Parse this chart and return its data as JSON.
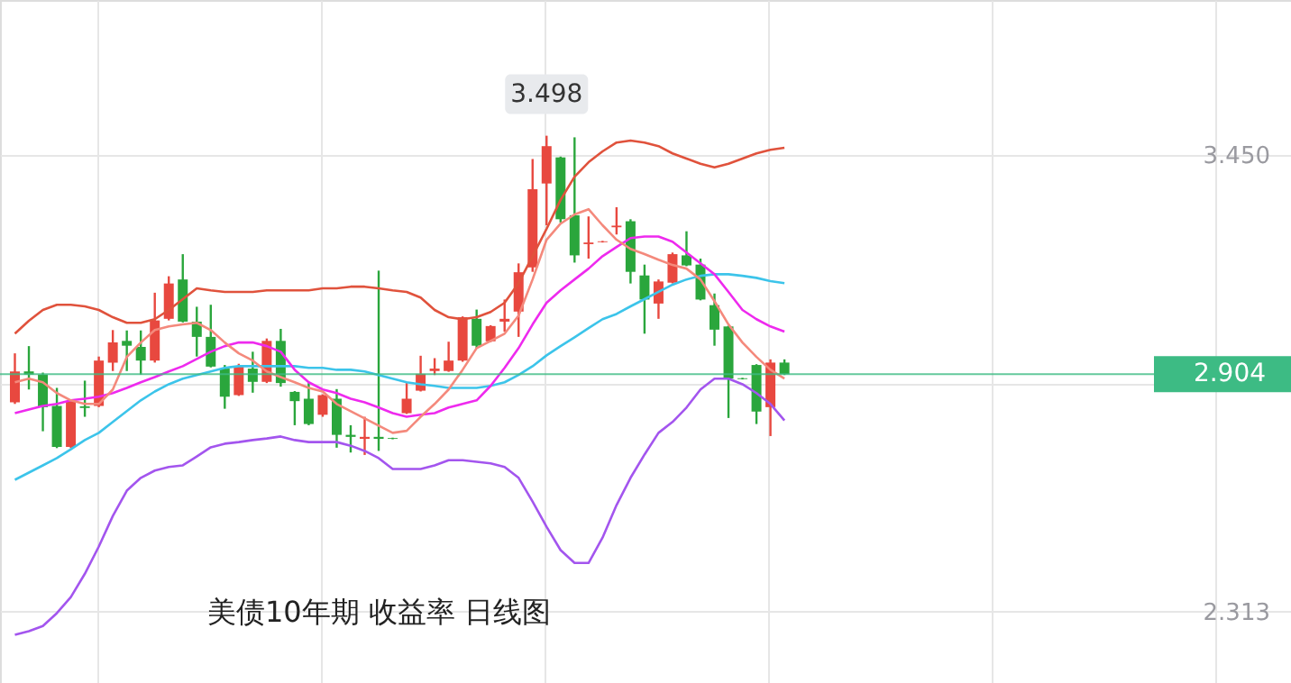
{
  "chart_data": {
    "type": "candlestick",
    "title": "美债10年期 收益率 日线图",
    "categories": [
      null,
      null,
      null,
      null,
      null,
      null,
      null,
      null,
      null,
      null,
      null,
      null,
      null,
      null,
      null,
      null,
      null,
      null,
      null,
      null,
      null,
      null,
      null,
      null,
      null,
      null,
      null,
      null,
      null,
      null,
      null,
      null,
      null,
      null,
      null,
      null,
      null,
      null,
      null,
      null,
      null,
      null,
      null,
      null,
      null,
      null,
      null,
      null,
      null,
      null,
      null,
      null,
      null,
      null,
      null,
      null
    ],
    "ohlc": [
      [
        2.834,
        2.956,
        2.83,
        2.911
      ],
      [
        2.911,
        2.974,
        2.866,
        2.903
      ],
      [
        2.903,
        2.908,
        2.762,
        2.822
      ],
      [
        2.825,
        2.87,
        2.72,
        2.723
      ],
      [
        2.723,
        2.838,
        2.72,
        2.836
      ],
      [
        2.824,
        2.888,
        2.798,
        2.82
      ],
      [
        2.825,
        2.948,
        2.822,
        2.938
      ],
      [
        2.933,
        3.014,
        2.912,
        2.983
      ],
      [
        2.987,
        3.013,
        2.912,
        2.975
      ],
      [
        2.972,
        3.013,
        2.903,
        2.938
      ],
      [
        2.938,
        3.107,
        2.933,
        3.038
      ],
      [
        3.042,
        3.148,
        3.038,
        3.13
      ],
      [
        3.14,
        3.203,
        3.033,
        3.035
      ],
      [
        3.035,
        3.072,
        2.948,
        2.997
      ],
      [
        2.997,
        3.077,
        2.921,
        2.923
      ],
      [
        2.918,
        2.927,
        2.818,
        2.848
      ],
      [
        2.852,
        2.93,
        2.85,
        2.923
      ],
      [
        2.918,
        2.96,
        2.858,
        2.885
      ],
      [
        2.885,
        2.993,
        2.882,
        2.987
      ],
      [
        2.987,
        3.017,
        2.873,
        2.882
      ],
      [
        2.86,
        2.862,
        2.777,
        2.837
      ],
      [
        2.843,
        2.882,
        2.777,
        2.78
      ],
      [
        2.803,
        2.854,
        2.798,
        2.852
      ],
      [
        2.843,
        2.867,
        2.721,
        2.753
      ],
      [
        2.753,
        2.777,
        2.709,
        2.748
      ],
      [
        2.743,
        2.798,
        2.703,
        2.748
      ],
      [
        2.748,
        3.162,
        2.713,
        2.743
      ],
      [
        2.745,
        2.746,
        2.742,
        2.743
      ],
      [
        2.807,
        2.882,
        2.805,
        2.843
      ],
      [
        2.863,
        2.95,
        2.861,
        2.905
      ],
      [
        2.912,
        2.944,
        2.902,
        2.918
      ],
      [
        2.912,
        2.985,
        2.91,
        2.938
      ],
      [
        2.938,
        3.048,
        2.935,
        3.046
      ],
      [
        3.042,
        3.065,
        2.968,
        2.975
      ],
      [
        2.986,
        3.026,
        2.984,
        3.024
      ],
      [
        3.035,
        3.09,
        3.01,
        3.042
      ],
      [
        3.06,
        3.18,
        2.997,
        3.158
      ],
      [
        3.17,
        3.44,
        3.159,
        3.365
      ],
      [
        3.379,
        3.498,
        3.275,
        3.472
      ],
      [
        3.444,
        3.446,
        3.282,
        3.29
      ],
      [
        3.3,
        3.494,
        3.182,
        3.2
      ],
      [
        3.228,
        3.297,
        3.192,
        3.232
      ],
      [
        3.233,
        3.236,
        3.232,
        3.235
      ],
      [
        3.27,
        3.32,
        3.252,
        3.274
      ],
      [
        3.285,
        3.29,
        3.13,
        3.159
      ],
      [
        3.15,
        3.177,
        3.005,
        3.09
      ],
      [
        3.08,
        3.14,
        3.042,
        3.135
      ],
      [
        3.132,
        3.207,
        3.13,
        3.203
      ],
      [
        3.2,
        3.26,
        3.173,
        3.175
      ],
      [
        3.177,
        3.192,
        3.088,
        3.09
      ],
      [
        3.076,
        3.105,
        2.975,
        3.015
      ],
      [
        3.023,
        3.025,
        2.795,
        2.893
      ],
      [
        2.894,
        2.895,
        2.891,
        2.892
      ],
      [
        2.927,
        2.929,
        2.78,
        2.811
      ],
      [
        2.822,
        2.941,
        2.75,
        2.933
      ],
      [
        2.933,
        2.941,
        2.902,
        2.904
      ]
    ],
    "colors": [
      "#e8483f",
      "#2aa63c",
      "#2aa63c",
      "#2aa63c",
      "#e8483f",
      "#2aa63c",
      "#e8483f",
      "#e8483f",
      "#2aa63c",
      "#2aa63c",
      "#e8483f",
      "#e8483f",
      "#2aa63c",
      "#2aa63c",
      "#2aa63c",
      "#2aa63c",
      "#e8483f",
      "#2aa63c",
      "#e8483f",
      "#2aa63c",
      "#2aa63c",
      "#2aa63c",
      "#e8483f",
      "#2aa63c",
      "#2aa63c",
      "#e8483f",
      "#2aa63c",
      "#2aa63c",
      "#e8483f",
      "#e8483f",
      "#e8483f",
      "#e8483f",
      "#e8483f",
      "#2aa63c",
      "#e8483f",
      "#e8483f",
      "#e8483f",
      "#e8483f",
      "#e8483f",
      "#2aa63c",
      "#2aa63c",
      "#e8483f",
      "#e8483f",
      "#e8483f",
      "#2aa63c",
      "#2aa63c",
      "#e8483f",
      "#e8483f",
      "#2aa63c",
      "#2aa63c",
      "#2aa63c",
      "#2aa63c",
      "#2aa63c",
      "#2aa63c",
      "#e8483f",
      "#2aa63c"
    ],
    "series": [
      {
        "type": "line",
        "color": "#e0523c",
        "values": [
          3.005,
          3.037,
          3.064,
          3.077,
          3.077,
          3.073,
          3.064,
          3.046,
          3.032,
          3.032,
          3.041,
          3.064,
          3.091,
          3.118,
          3.113,
          3.109,
          3.109,
          3.109,
          3.113,
          3.113,
          3.113,
          3.113,
          3.118,
          3.118,
          3.122,
          3.122,
          3.118,
          3.113,
          3.109,
          3.095,
          3.064,
          3.046,
          3.041,
          3.046,
          3.059,
          3.082,
          3.131,
          3.198,
          3.266,
          3.338,
          3.396,
          3.432,
          3.459,
          3.481,
          3.486,
          3.481,
          3.472,
          3.454,
          3.441,
          3.428,
          3.419,
          3.428,
          3.441,
          3.454,
          3.463,
          3.468
        ]
      },
      {
        "type": "line",
        "color": "#3cc4ea",
        "values": [
          2.641,
          2.659,
          2.677,
          2.695,
          2.717,
          2.74,
          2.758,
          2.785,
          2.812,
          2.839,
          2.861,
          2.879,
          2.893,
          2.902,
          2.911,
          2.92,
          2.924,
          2.924,
          2.924,
          2.924,
          2.924,
          2.92,
          2.92,
          2.915,
          2.915,
          2.911,
          2.902,
          2.893,
          2.884,
          2.879,
          2.875,
          2.87,
          2.87,
          2.87,
          2.875,
          2.884,
          2.902,
          2.924,
          2.951,
          2.974,
          2.996,
          3.019,
          3.041,
          3.054,
          3.073,
          3.091,
          3.109,
          3.127,
          3.14,
          3.149,
          3.153,
          3.153,
          3.149,
          3.144,
          3.136,
          3.131
        ]
      },
      {
        "type": "line",
        "color": "#a355ee",
        "values": [
          2.255,
          2.264,
          2.277,
          2.309,
          2.349,
          2.407,
          2.475,
          2.551,
          2.614,
          2.646,
          2.664,
          2.673,
          2.677,
          2.699,
          2.722,
          2.731,
          2.735,
          2.74,
          2.744,
          2.749,
          2.74,
          2.735,
          2.735,
          2.735,
          2.726,
          2.713,
          2.695,
          2.668,
          2.668,
          2.668,
          2.677,
          2.69,
          2.69,
          2.686,
          2.682,
          2.673,
          2.646,
          2.587,
          2.524,
          2.466,
          2.434,
          2.434,
          2.497,
          2.578,
          2.646,
          2.704,
          2.758,
          2.785,
          2.821,
          2.866,
          2.893,
          2.893,
          2.879,
          2.857,
          2.83,
          2.789
        ]
      },
      {
        "type": "line",
        "color": "#ee2aee",
        "values": [
          2.807,
          2.816,
          2.825,
          2.83,
          2.839,
          2.843,
          2.848,
          2.857,
          2.87,
          2.884,
          2.897,
          2.911,
          2.924,
          2.942,
          2.96,
          2.974,
          2.983,
          2.983,
          2.974,
          2.96,
          2.915,
          2.884,
          2.866,
          2.857,
          2.843,
          2.834,
          2.821,
          2.807,
          2.798,
          2.803,
          2.807,
          2.821,
          2.83,
          2.839,
          2.875,
          2.92,
          2.969,
          3.028,
          3.082,
          3.113,
          3.14,
          3.167,
          3.198,
          3.221,
          3.243,
          3.247,
          3.247,
          3.234,
          3.207,
          3.18,
          3.153,
          3.109,
          3.064,
          3.041,
          3.023,
          3.01
        ]
      },
      {
        "type": "line",
        "color": "#f4897c",
        "values": [
          2.884,
          2.893,
          2.884,
          2.857,
          2.839,
          2.83,
          2.83,
          2.866,
          2.947,
          2.983,
          3.014,
          3.023,
          3.028,
          3.032,
          3.014,
          2.983,
          2.956,
          2.938,
          2.911,
          2.897,
          2.884,
          2.87,
          2.861,
          2.83,
          2.812,
          2.794,
          2.776,
          2.758,
          2.763,
          2.798,
          2.83,
          2.866,
          2.915,
          2.969,
          2.987,
          3.005,
          3.05,
          3.14,
          3.239,
          3.279,
          3.302,
          3.315,
          3.275,
          3.239,
          3.216,
          3.203,
          3.189,
          3.176,
          3.167,
          3.14,
          3.086,
          3.028,
          2.983,
          2.947,
          2.915,
          2.893
        ]
      }
    ],
    "ylim": [
      2.135,
      3.836
    ],
    "yticks": [
      {
        "value": 3.45,
        "label": "3.450"
      },
      {
        "value": 2.8815,
        "label": null
      },
      2.313
    ],
    "grid": true,
    "ref_lines": [
      {
        "axis": "y",
        "value": 2.904,
        "label": "2.904",
        "color": "#3dbb84"
      }
    ],
    "annotations": [
      {
        "text": "3.498",
        "y": 3.498
      }
    ]
  }
}
